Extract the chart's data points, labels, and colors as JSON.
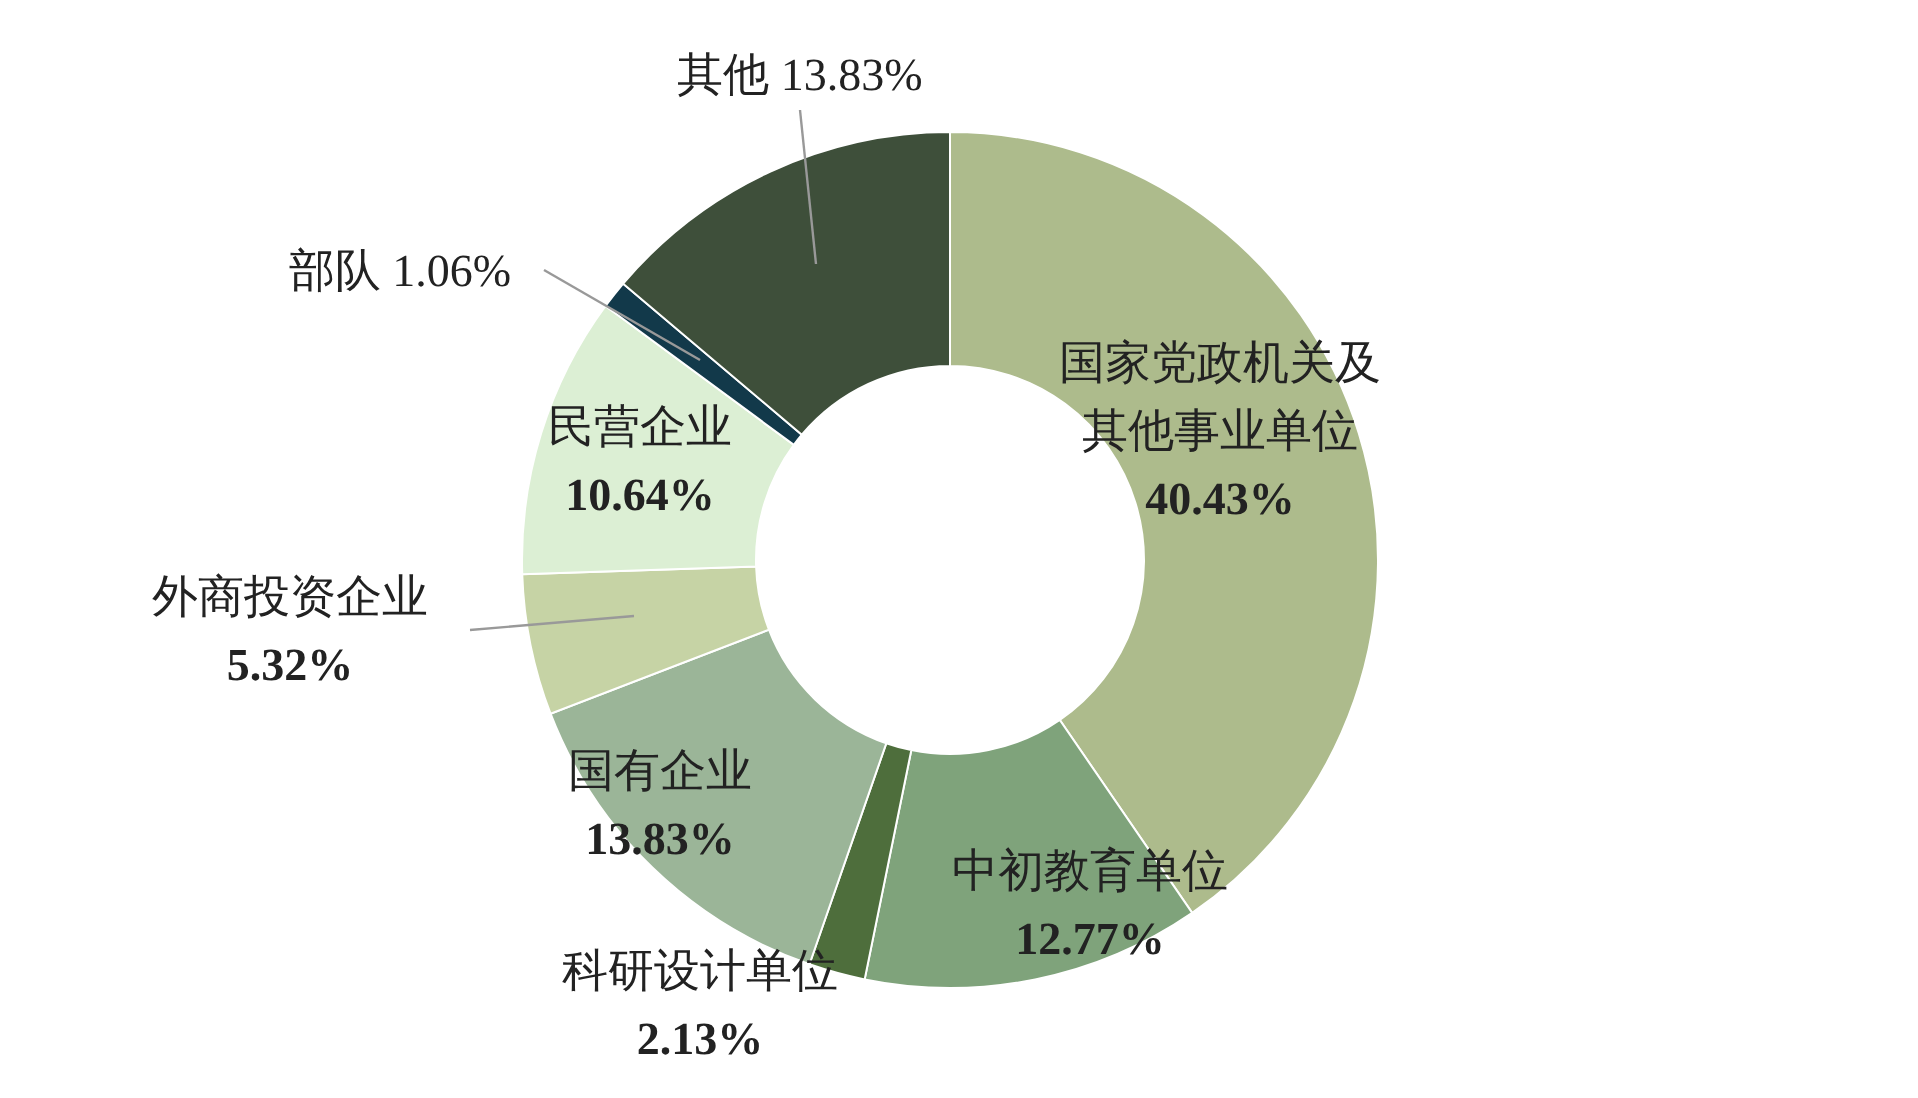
{
  "chart_data": {
    "type": "donut",
    "categories": [
      "国家党政机关及其他事业单位",
      "中初教育单位",
      "科研设计单位",
      "国有企业",
      "外商投资企业",
      "民营企业",
      "部队",
      "其他"
    ],
    "values": [
      40.43,
      12.77,
      2.13,
      13.83,
      5.32,
      10.64,
      1.06,
      13.83
    ],
    "value_labels": [
      "40.43%",
      "12.77%",
      "2.13%",
      "13.83%",
      "5.32%",
      "10.64%",
      "1.06%",
      "13.83%"
    ],
    "colors": [
      "#adbb8c",
      "#7fa37b",
      "#4e6e3c",
      "#9bb598",
      "#c6d3a5",
      "#dcefd4",
      "#12394a",
      "#3e4f3a"
    ]
  }
}
